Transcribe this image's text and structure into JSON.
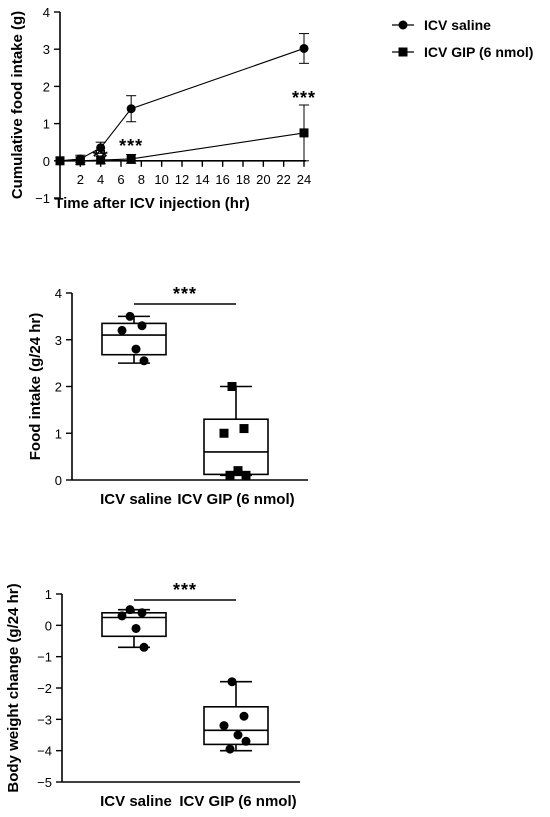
{
  "chart_data": [
    {
      "type": "line",
      "title": "",
      "xlabel": "Time after ICV injection (hr)",
      "ylabel": "Cumulative food intake (g)",
      "xlim": [
        0,
        24
      ],
      "ylim": [
        -1,
        4
      ],
      "xticks": [
        2,
        4,
        6,
        8,
        10,
        12,
        14,
        16,
        18,
        20,
        22,
        24
      ],
      "yticks": [
        -1,
        0,
        1,
        2,
        3,
        4
      ],
      "grid": false,
      "legend": "top-right",
      "series": [
        {
          "name": "ICV saline",
          "marker": "circle",
          "x": [
            0,
            2,
            4,
            7,
            24
          ],
          "y": [
            0,
            0.05,
            0.35,
            1.4,
            3.02
          ],
          "err": [
            0,
            0.1,
            0.15,
            0.35,
            0.4
          ]
        },
        {
          "name": "ICV GIP (6 nmol)",
          "marker": "square",
          "x": [
            0,
            2,
            4,
            7,
            24
          ],
          "y": [
            0,
            0,
            0.02,
            0.05,
            0.75
          ],
          "err": [
            0,
            0.1,
            0.1,
            0.12,
            0.75
          ]
        }
      ],
      "annotations": [
        {
          "text": "**",
          "x": 4
        },
        {
          "text": "***",
          "x": 7
        },
        {
          "text": "***",
          "x": 24
        }
      ]
    },
    {
      "type": "box",
      "title": "",
      "xlabel": "",
      "ylabel": "Food intake (g/24 hr)",
      "ylim": [
        0,
        4
      ],
      "yticks": [
        0,
        1,
        2,
        3,
        4
      ],
      "categories": [
        "ICV saline",
        "ICV GIP (6 nmol)"
      ],
      "boxes": [
        {
          "min": 2.5,
          "q1": 2.68,
          "median": 3.1,
          "q3": 3.35,
          "max": 3.5,
          "marker": "circle",
          "points": [
            3.5,
            3.3,
            3.2,
            2.8,
            2.55
          ]
        },
        {
          "min": 0.1,
          "q1": 0.12,
          "median": 0.6,
          "q3": 1.3,
          "max": 2.0,
          "marker": "square",
          "points": [
            2.0,
            1.1,
            1.0,
            0.2,
            0.1,
            0.1
          ]
        }
      ],
      "significance": "***"
    },
    {
      "type": "box",
      "title": "",
      "xlabel": "",
      "ylabel": "Body weight change (g/24 hr)",
      "ylim": [
        -5,
        1
      ],
      "yticks": [
        -5,
        -4,
        -3,
        -2,
        -1,
        0,
        1
      ],
      "categories": [
        "ICV saline",
        "ICV GIP (6 nmol)"
      ],
      "boxes": [
        {
          "min": -0.7,
          "q1": -0.35,
          "median": 0.25,
          "q3": 0.4,
          "max": 0.5,
          "marker": "circle",
          "points": [
            0.5,
            0.4,
            0.3,
            -0.1,
            -0.7
          ]
        },
        {
          "min": -4.0,
          "q1": -3.8,
          "median": -3.35,
          "q3": -2.6,
          "max": -1.8,
          "marker": "circle",
          "points": [
            -1.8,
            -2.9,
            -3.2,
            -3.5,
            -3.7,
            -3.95
          ]
        }
      ],
      "significance": "***"
    }
  ]
}
